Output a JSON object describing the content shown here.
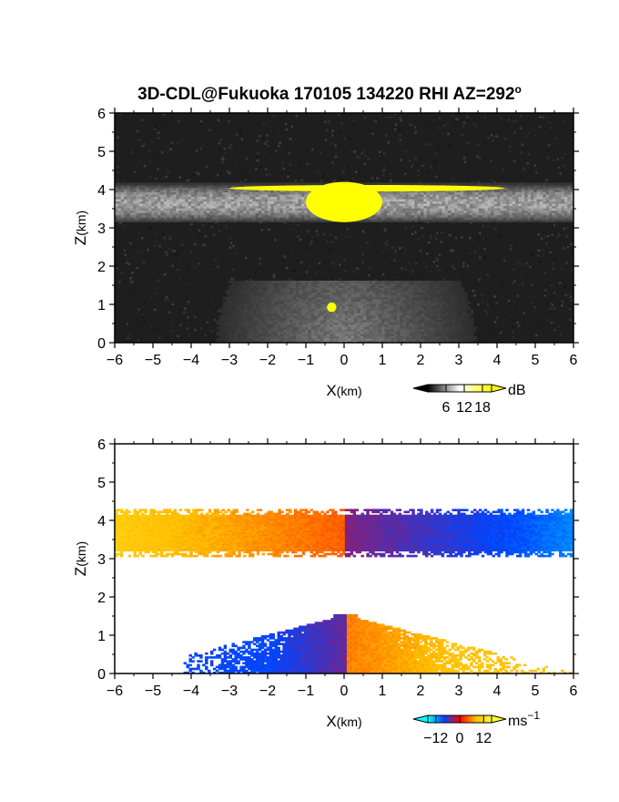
{
  "figure": {
    "title": "3D-CDL@Fukuoka 170105 134220 RHI AZ=292",
    "title_superscript": "o"
  },
  "chart_data": [
    {
      "type": "heatmap",
      "id": "backscatter",
      "xlabel_main": "X",
      "xlabel_unit": "(km)",
      "ylabel_main": "Z",
      "ylabel_unit": "(km)",
      "xlim": [
        -6,
        6
      ],
      "ylim": [
        0,
        6
      ],
      "x_ticks": [
        "−6",
        "−5",
        "−4",
        "−3",
        "−2",
        "−1",
        "0",
        "1",
        "2",
        "3",
        "4",
        "5",
        "6"
      ],
      "y_ticks": [
        "0",
        "1",
        "2",
        "3",
        "4",
        "5",
        "6"
      ],
      "background_color": "#1e1e1e",
      "saturation_color": "#ffff00",
      "layers": [
        {
          "name": "cloud-layer",
          "x_range": [
            -6,
            6
          ],
          "z_range": [
            3.1,
            4.15
          ],
          "level_db": 15
        },
        {
          "name": "boundary-layer-fan",
          "x_range": [
            -3.5,
            3.5
          ],
          "z_range": [
            0,
            1.6
          ],
          "level_db": 10
        }
      ],
      "saturated_regions": [
        {
          "x_range": [
            -3,
            4.2
          ],
          "z_range": [
            3.95,
            4.12
          ]
        },
        {
          "x_range": [
            -1.0,
            1.0
          ],
          "z_range": [
            3.15,
            4.2
          ]
        },
        {
          "x_range": [
            -0.45,
            -0.2
          ],
          "z_range": [
            0.8,
            1.05
          ]
        }
      ],
      "colorbar": {
        "ticks": [
          "6",
          "12",
          "18"
        ],
        "tick_values": [
          6,
          12,
          18
        ],
        "range": [
          0,
          21
        ],
        "unit": "dB",
        "colors": [
          "#000000",
          "#ffffff",
          "#ffff00"
        ]
      }
    },
    {
      "type": "heatmap",
      "id": "doppler-velocity",
      "xlabel_main": "X",
      "xlabel_unit": "(km)",
      "ylabel_main": "Z",
      "ylabel_unit": "(km)",
      "xlim": [
        -6,
        6
      ],
      "ylim": [
        0,
        6
      ],
      "x_ticks": [
        "−6",
        "−5",
        "−4",
        "−3",
        "−2",
        "−1",
        "0",
        "1",
        "2",
        "3",
        "4",
        "5",
        "6"
      ],
      "y_ticks": [
        "0",
        "1",
        "2",
        "3",
        "4",
        "5",
        "6"
      ],
      "background_color": "#ffffff",
      "layers": [
        {
          "name": "upper-layer",
          "x_range": [
            -6,
            6
          ],
          "z_range": [
            3.05,
            4.25
          ],
          "velocity_at_left": 10,
          "velocity_at_right": -11
        },
        {
          "name": "lower-layer",
          "x_range": [
            -4.2,
            5.9
          ],
          "z_range": [
            0,
            1.55
          ],
          "velocity_at_left": -8,
          "velocity_at_right": 9
        }
      ],
      "colorbar": {
        "ticks": [
          "−12",
          "0",
          "12"
        ],
        "tick_values": [
          -12,
          0,
          12
        ],
        "range": [
          -16,
          16
        ],
        "unit": "ms",
        "unit_superscript": "−1",
        "colors": [
          "#00ffff",
          "#0044ff",
          "#ff0000",
          "#ffbb00",
          "#ffff33"
        ]
      }
    }
  ]
}
